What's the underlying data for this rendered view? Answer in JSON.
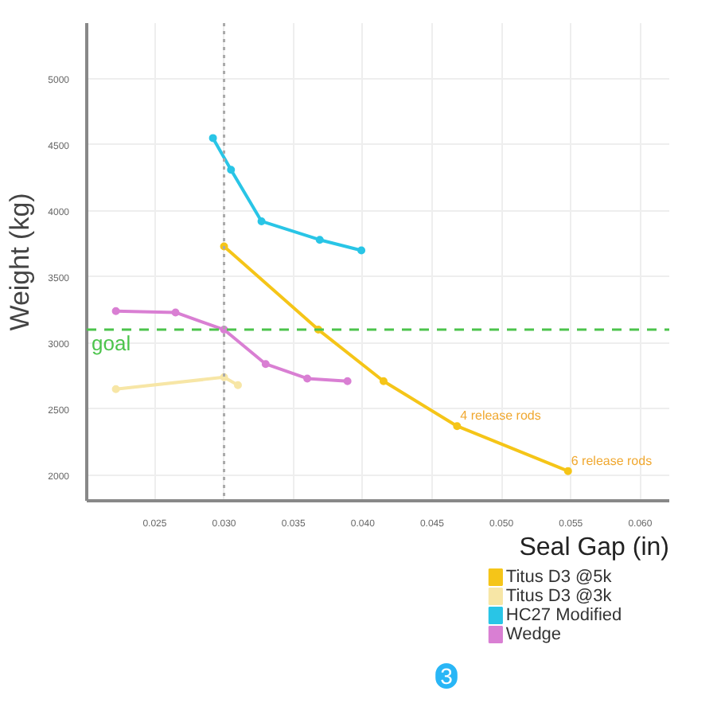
{
  "chart_data": {
    "type": "line",
    "xlabel": "Seal Gap (in)",
    "ylabel": "Weight (kg)",
    "xlim": [
      0.0201,
      0.0621
    ],
    "ylim": [
      1805,
      5420
    ],
    "xticks": [
      0.025,
      {
        "value": 0.03,
        "label": "0.030"
      },
      0.035,
      {
        "value": 0.04,
        "label": "0.040"
      },
      0.045,
      {
        "value": 0.05,
        "label": "0.050"
      },
      0.055,
      {
        "value": 0.06,
        "label": "0.060"
      }
    ],
    "yticks": [
      2000,
      2500,
      3000,
      3500,
      4000,
      4500,
      5000
    ],
    "series": [
      {
        "name": "Titus D3 @5k",
        "color": "#f5c518",
        "x": [
          0.03,
          0.0368,
          0.0415,
          0.0468,
          0.0548
        ],
        "values": [
          3730,
          3100,
          2710,
          2370,
          2030
        ]
      },
      {
        "name": "Titus D3 @3k",
        "color": "#f7e6a6",
        "x": [
          0.0222,
          0.03,
          0.031
        ],
        "values": [
          2650,
          2740,
          2680
        ]
      },
      {
        "name": "HC27 Modified",
        "color": "#29c5e6",
        "x": [
          0.0292,
          0.0305,
          0.0327,
          0.0369,
          0.0399
        ],
        "values": [
          4550,
          4310,
          3920,
          3780,
          3700
        ]
      },
      {
        "name": "Wedge",
        "color": "#d97fd3",
        "x": [
          0.0222,
          0.0265,
          0.03,
          0.033,
          0.036,
          0.0389
        ],
        "values": [
          3240,
          3230,
          3100,
          2840,
          2730,
          2710
        ]
      }
    ],
    "ref_lines": [
      {
        "axis": "y",
        "value": 3100,
        "label": "goal",
        "color": "#4cc44c",
        "line_style": "dashed"
      },
      {
        "axis": "x",
        "value": 0.03,
        "color": "#aaaaaa",
        "line_style": "dotted"
      }
    ],
    "annotations": [
      {
        "text": "4 release rods",
        "x": 0.0468,
        "y": 2370
      },
      {
        "text": "6 release rods",
        "x": 0.0548,
        "y": 2030
      },
      "3"
    ],
    "marker": "circle",
    "grid": true,
    "legend": "bottom right"
  }
}
